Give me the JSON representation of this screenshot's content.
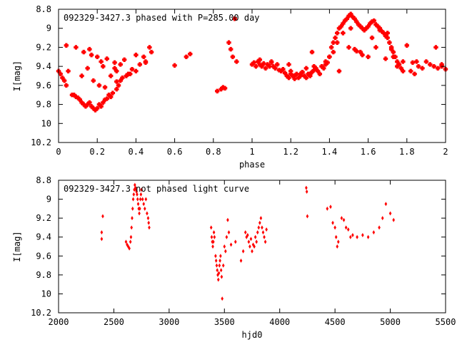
{
  "chart_data": [
    {
      "type": "scatter",
      "title": "092329-3427.3 phased with P=285.00 day",
      "xlabel": "phase",
      "ylabel": "I[mag]",
      "xlim": [
        0,
        2
      ],
      "ylim": [
        10.2,
        8.8
      ],
      "y_reversed": true,
      "grid": false,
      "x_ticks": [
        "0",
        "0.2",
        "0.4",
        "0.6",
        "0.8",
        "1",
        "1.2",
        "1.4",
        "1.6",
        "1.8",
        "2"
      ],
      "y_ticks": [
        "8.8",
        "9",
        "9.2",
        "9.4",
        "9.6",
        "9.8",
        "10",
        "10.2"
      ],
      "marker_color": "#ff0000",
      "series": [
        {
          "x": [
            0.0,
            0.01,
            0.02,
            0.03,
            0.04,
            0.05,
            0.07,
            0.08,
            0.09,
            0.1,
            0.11,
            0.12,
            0.13,
            0.14,
            0.15,
            0.16,
            0.17,
            0.18,
            0.19,
            0.2,
            0.21,
            0.22,
            0.23,
            0.24,
            0.25,
            0.26,
            0.27,
            0.28,
            0.3,
            0.31,
            0.32,
            0.33,
            0.35,
            0.37,
            0.4,
            0.42,
            0.45,
            0.47,
            0.48,
            0.04,
            0.09,
            0.13,
            0.16,
            0.17,
            0.2,
            0.22,
            0.23,
            0.25,
            0.29,
            0.29,
            0.3,
            0.32,
            0.34,
            0.36,
            0.38,
            0.4,
            0.44,
            0.45,
            0.6,
            0.66,
            0.68,
            0.82,
            0.84,
            0.85,
            0.86,
            0.88,
            0.89,
            0.9,
            0.91,
            0.92,
            0.12,
            0.15,
            0.18,
            0.21,
            0.24,
            0.27,
            0.3
          ],
          "y": [
            9.45,
            9.48,
            9.52,
            9.55,
            9.6,
            9.45,
            9.7,
            9.7,
            9.72,
            9.73,
            9.75,
            9.78,
            9.8,
            9.82,
            9.8,
            9.78,
            9.82,
            9.84,
            9.86,
            9.84,
            9.8,
            9.82,
            9.78,
            9.75,
            9.74,
            9.7,
            9.72,
            9.68,
            9.64,
            9.6,
            9.55,
            9.52,
            9.5,
            9.48,
            9.45,
            9.38,
            9.35,
            9.2,
            9.25,
            9.18,
            9.2,
            9.25,
            9.22,
            9.28,
            9.3,
            9.35,
            9.4,
            9.32,
            9.36,
            9.42,
            9.45,
            9.38,
            9.33,
            9.48,
            9.43,
            9.28,
            9.3,
            9.36,
            9.39,
            9.3,
            9.27,
            9.66,
            9.64,
            9.62,
            9.63,
            9.15,
            9.22,
            9.3,
            8.9,
            9.35,
            9.5,
            9.42,
            9.55,
            9.6,
            9.62,
            9.5,
            9.56
          ]
        },
        {
          "x": [
            1.0,
            1.01,
            1.02,
            1.03,
            1.04,
            1.05,
            1.06,
            1.07,
            1.08,
            1.09,
            1.1,
            1.11,
            1.12,
            1.13,
            1.14,
            1.15,
            1.16,
            1.17,
            1.18,
            1.19,
            1.2,
            1.21,
            1.22,
            1.23,
            1.24,
            1.25,
            1.26,
            1.27,
            1.28,
            1.29,
            1.3,
            1.31,
            1.32,
            1.33,
            1.34,
            1.35,
            1.36,
            1.37,
            1.38,
            1.39,
            1.4,
            1.41,
            1.42,
            1.43,
            1.44,
            1.45,
            1.46,
            1.47,
            1.48,
            1.49,
            1.5,
            1.51,
            1.52,
            1.53,
            1.54,
            1.55,
            1.56,
            1.57,
            1.58,
            1.59,
            1.6,
            1.61,
            1.62,
            1.63,
            1.64,
            1.65,
            1.66,
            1.67,
            1.68,
            1.69,
            1.7,
            1.71,
            1.72,
            1.73,
            1.74,
            1.75,
            1.76,
            1.77,
            1.78,
            1.82,
            1.84,
            1.86,
            1.88,
            1.9,
            1.92,
            1.94,
            1.96,
            1.98,
            2.0,
            1.04,
            1.1,
            1.19,
            1.2,
            1.22,
            1.25,
            1.28,
            1.31,
            1.36,
            1.38,
            1.42,
            1.45,
            1.5,
            1.53,
            1.56,
            1.6,
            1.66,
            1.7,
            1.73,
            1.78,
            1.85,
            1.95,
            1.98,
            1.26,
            1.3,
            1.32,
            1.4,
            1.44,
            1.47,
            1.51,
            1.54,
            1.57,
            1.62,
            1.64,
            1.69,
            1.72,
            1.75,
            1.8,
            1.83
          ],
          "y": [
            9.38,
            9.36,
            9.4,
            9.35,
            9.38,
            9.4,
            9.37,
            9.42,
            9.38,
            9.4,
            9.36,
            9.4,
            9.42,
            9.38,
            9.44,
            9.45,
            9.43,
            9.47,
            9.5,
            9.52,
            9.48,
            9.5,
            9.53,
            9.48,
            9.52,
            9.5,
            9.46,
            9.5,
            9.52,
            9.48,
            9.5,
            9.46,
            9.44,
            9.42,
            9.45,
            9.48,
            9.4,
            9.42,
            9.38,
            9.36,
            9.3,
            9.2,
            9.15,
            9.1,
            9.05,
            9.0,
            8.98,
            8.95,
            8.92,
            8.9,
            8.87,
            8.85,
            8.88,
            8.9,
            8.93,
            8.96,
            8.98,
            9.0,
            9.02,
            9.0,
            8.98,
            8.95,
            8.93,
            8.92,
            8.96,
            8.98,
            9.0,
            9.03,
            9.05,
            9.08,
            9.1,
            9.15,
            9.2,
            9.25,
            9.3,
            9.35,
            9.38,
            9.42,
            9.45,
            9.45,
            9.48,
            9.4,
            9.42,
            9.35,
            9.38,
            9.4,
            9.42,
            9.38,
            9.43,
            9.33,
            9.35,
            9.38,
            9.45,
            9.5,
            9.48,
            9.42,
            9.25,
            9.4,
            9.35,
            9.25,
            9.45,
            9.2,
            9.22,
            9.25,
            9.3,
            9.02,
            9.05,
            9.3,
            9.35,
            9.35,
            9.2,
            9.4,
            9.46,
            9.48,
            9.4,
            9.3,
            9.15,
            9.05,
            9.0,
            9.24,
            9.28,
            9.1,
            9.2,
            9.32,
            9.22,
            9.4,
            9.18,
            9.36
          ]
        }
      ]
    },
    {
      "type": "scatter",
      "title": "092329-3427.3 not phased light curve",
      "xlabel": "hjd0",
      "ylabel": "I[mag]",
      "xlim": [
        2000,
        5500
      ],
      "ylim": [
        10.2,
        8.8
      ],
      "y_reversed": true,
      "grid": false,
      "x_ticks": [
        "2000",
        "2500",
        "3000",
        "3500",
        "4000",
        "4500",
        "5000",
        "5500"
      ],
      "y_ticks": [
        "8.8",
        "9",
        "9.2",
        "9.4",
        "9.6",
        "9.8",
        "10",
        "10.2"
      ],
      "marker_color": "#ff0000",
      "series": [
        {
          "x": [
            2390,
            2390,
            2400,
            2610,
            2620,
            2630,
            2640,
            2650,
            2655,
            2660,
            2665,
            2670,
            2675,
            2680,
            2685,
            2690,
            2695,
            2700,
            2705,
            2710,
            2715,
            2720,
            2725,
            2730,
            2735,
            2740,
            2745,
            2750,
            2760,
            2770,
            2780,
            2790,
            2800,
            2810,
            2815,
            2820,
            3380,
            3385,
            3390,
            3395,
            3400,
            3405,
            3410,
            3420,
            3425,
            3430,
            3435,
            3440,
            3445,
            3450,
            3455,
            3460,
            3465,
            3470,
            3475,
            3480,
            3490,
            3500,
            3510,
            3520,
            3530,
            3540,
            3560,
            3600,
            3650,
            3670,
            3690,
            3700,
            3710,
            3720,
            3730,
            3740,
            3750,
            3760,
            3770,
            3780,
            3790,
            3800,
            3810,
            3820,
            3830,
            3840,
            3850,
            3860,
            3870,
            3880,
            4240,
            4245,
            4250,
            4430,
            4460,
            4480,
            4500,
            4510,
            4520,
            4530,
            4560,
            4580,
            4600,
            4620,
            4640,
            4660,
            4700,
            4750,
            4800,
            4850,
            4900,
            4930,
            4960,
            5000,
            5030
          ],
          "y": [
            9.35,
            9.42,
            9.18,
            9.45,
            9.48,
            9.5,
            9.52,
            9.45,
            9.4,
            9.3,
            9.2,
            9.1,
            9.0,
            8.95,
            8.9,
            8.85,
            8.88,
            8.9,
            8.92,
            8.95,
            9.0,
            9.05,
            9.1,
            9.15,
            9.1,
            9.0,
            8.95,
            8.9,
            9.0,
            9.05,
            9.1,
            9.0,
            9.15,
            9.2,
            9.25,
            9.3,
            9.3,
            9.4,
            9.45,
            9.5,
            9.45,
            9.35,
            9.4,
            9.6,
            9.65,
            9.7,
            9.75,
            9.8,
            9.85,
            9.78,
            9.7,
            9.65,
            9.6,
            9.75,
            9.82,
            10.05,
            9.7,
            9.5,
            9.55,
            9.4,
            9.22,
            9.35,
            9.48,
            9.45,
            9.65,
            9.55,
            9.35,
            9.4,
            9.38,
            9.45,
            9.5,
            9.42,
            9.55,
            9.48,
            9.5,
            9.4,
            9.45,
            9.35,
            9.3,
            9.25,
            9.2,
            9.3,
            9.35,
            9.4,
            9.45,
            9.32,
            8.88,
            8.92,
            9.18,
            9.1,
            9.08,
            9.25,
            9.3,
            9.4,
            9.5,
            9.45,
            9.2,
            9.22,
            9.3,
            9.32,
            9.4,
            9.38,
            9.4,
            9.38,
            9.4,
            9.35,
            9.3,
            9.2,
            9.05,
            9.15,
            9.22
          ]
        }
      ]
    }
  ]
}
